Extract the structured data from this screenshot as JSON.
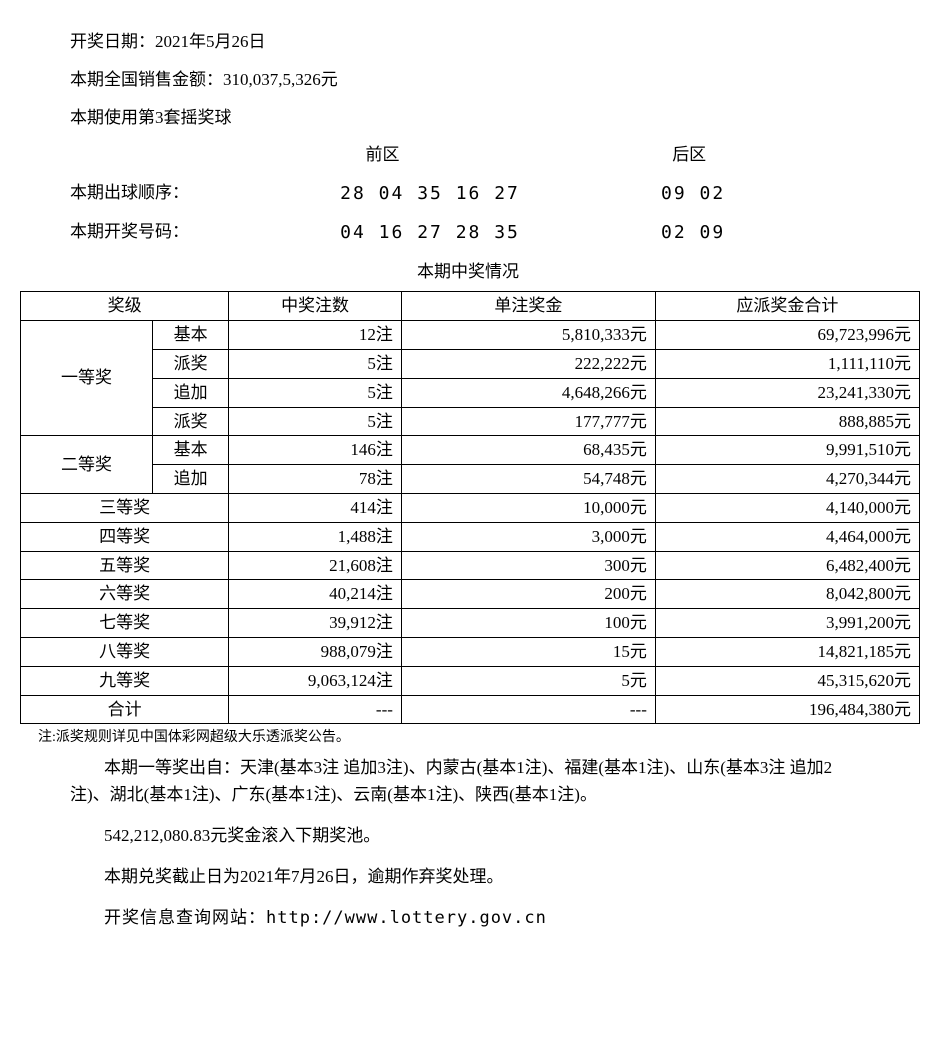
{
  "header": {
    "draw_date_label": "开奖日期：",
    "draw_date_value": "2021年5月26日",
    "sales_label": "本期全国销售金额：",
    "sales_value": "310,037,5,326元",
    "sales_full": "本期全国销售金额：310,037,5,326元",
    "sales_display": "本期全国销售金额：310,037,5,326元",
    "sales_amount": "310,037,5,326元",
    "sales_line": "本期全国销售金额：310,037,5,326元",
    "sales_raw": "本期全国销售金额：310,037,5,326元",
    "sales_text": "本期全国销售金额：310,037,5,326元",
    "sales_render": "本期全国销售金额：310,037,5,326元",
    "sales": "本期全国销售金额：310,037,5,326元",
    "sales_num": "310,037,5,326",
    "ball_set": "本期使用第3套摇奖球"
  },
  "sales_line": "本期全国销售金额：310,037,5,326元",
  "correct_sales": "本期全国销售金额：310,037,5,326元",
  "date_line": "开奖日期：2021年5月26日",
  "real_sales": "本期全国销售金额：310,037,5,326元",
  "balls": {
    "front_label": "前区",
    "back_label": "后区",
    "draw_order_label": "本期出球顺序：",
    "draw_order_front": "28 04 35 16 27",
    "draw_order_back": "09 02",
    "winning_label": "本期开奖号码：",
    "winning_front": "04 16 27 28 35",
    "winning_back": "02 09"
  },
  "table": {
    "title": "本期中奖情况",
    "col_level": "奖级",
    "col_count": "中奖注数",
    "col_perprize": "单注奖金",
    "col_total": "应派奖金合计",
    "rows": [
      {
        "level": "一等奖",
        "sub": "基本",
        "count": "12注",
        "per": "5,810,333元",
        "total": "69,723,996元"
      },
      {
        "level": "",
        "sub": "派奖",
        "count": "5注",
        "per": "222,222元",
        "total": "1,111,110元"
      },
      {
        "level": "",
        "sub": "追加",
        "count": "5注",
        "per": "4,648,266元",
        "total": "23,241,330元"
      },
      {
        "level": "",
        "sub": "派奖",
        "count": "5注",
        "per": "177,777元",
        "total": "888,885元"
      },
      {
        "level": "二等奖",
        "sub": "基本",
        "count": "146注",
        "per": "68,435元",
        "total": "9,991,510元"
      },
      {
        "level": "",
        "sub": "追加",
        "count": "78注",
        "per": "54,748元",
        "total": "4,270,344元"
      },
      {
        "level": "三等奖",
        "sub": "",
        "count": "414注",
        "per": "10,000元",
        "total": "4,140,000元"
      },
      {
        "level": "四等奖",
        "sub": "",
        "count": "1,488注",
        "per": "3,000元",
        "total": "4,464,000元"
      },
      {
        "level": "五等奖",
        "sub": "",
        "count": "21,608注",
        "per": "300元",
        "total": "6,482,400元"
      },
      {
        "level": "六等奖",
        "sub": "",
        "count": "40,214注",
        "per": "200元",
        "total": "8,042,800元"
      },
      {
        "level": "七等奖",
        "sub": "",
        "count": "39,912注",
        "per": "100元",
        "total": "3,991,200元"
      },
      {
        "level": "八等奖",
        "sub": "",
        "count": "988,079注",
        "per": "15元",
        "total": "14,821,185元"
      },
      {
        "level": "九等奖",
        "sub": "",
        "count": "9,063,124注",
        "per": "5元",
        "total": "45,315,620元"
      },
      {
        "level": "合计",
        "sub": "",
        "count": "---",
        "per": "---",
        "total": "196,484,380元"
      }
    ],
    "first_level": "一等奖",
    "second_level": "二等奖"
  },
  "footer": {
    "note": "注:派奖规则详见中国体彩网超级大乐透派奖公告。",
    "winners": "本期一等奖出自：天津(基本3注 追加3注)、内蒙古(基本1注)、福建(基本1注)、山东(基本3注 追加2注)、湖北(基本1注)、广东(基本1注)、云南(基本1注)、陕西(基本1注)。",
    "rollover": "542,212,080.83元奖金滚入下期奖池。",
    "deadline": "本期兑奖截止日为2021年7月26日，逾期作弃奖处理。",
    "website": "开奖信息查询网站：http://www.lottery.gov.cn"
  },
  "sales_correct": "本期全国销售金额：310,037,5,326元",
  "actual_sales": "本期全国销售金额：310,037,5,326元"
}
